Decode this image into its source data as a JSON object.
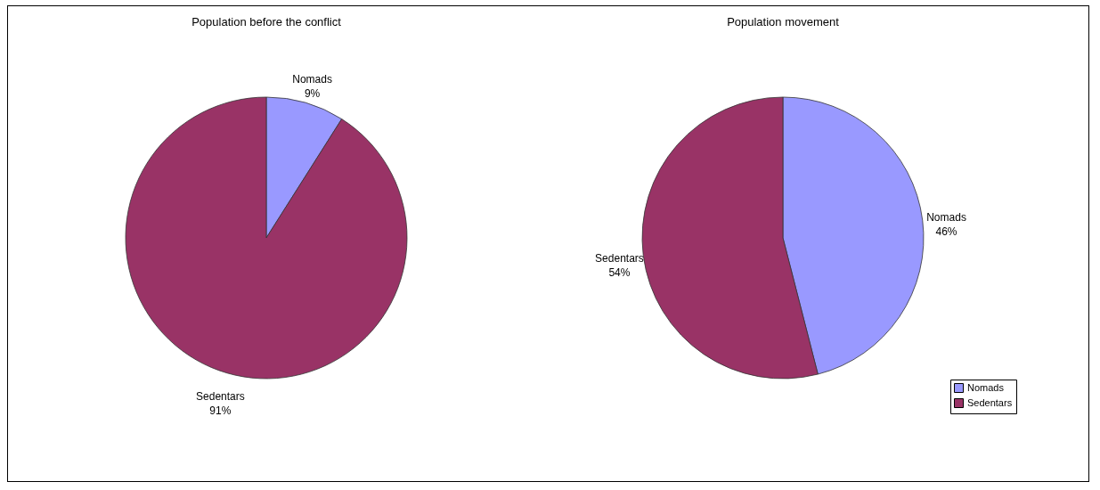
{
  "chart_data": [
    {
      "type": "pie",
      "title": "Population before the conflict",
      "categories": [
        "Nomads",
        "Sedentars"
      ],
      "values": [
        9,
        91
      ],
      "colors": [
        "#9999ff",
        "#993366"
      ],
      "value_labels": [
        "9%",
        "91%"
      ],
      "legend": false
    },
    {
      "type": "pie",
      "title": "Population movement",
      "categories": [
        "Nomads",
        "Sedentars"
      ],
      "values": [
        46,
        54
      ],
      "colors": [
        "#9999ff",
        "#993366"
      ],
      "value_labels": [
        "46%",
        "54%"
      ],
      "legend": "bottom right"
    }
  ]
}
